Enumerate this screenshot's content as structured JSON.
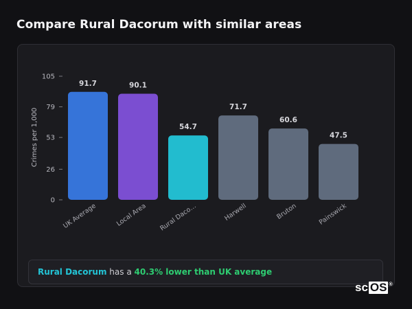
{
  "header": {
    "title": "Compare Rural Dacorum with similar areas"
  },
  "summary": {
    "area_name": "Rural Dacorum",
    "middle_text": " has a ",
    "difference_text": "40.3% lower than UK average"
  },
  "logo": {
    "text": "sc",
    "highlight": "OS",
    "mark": "®"
  },
  "colors": {
    "uk_average": "#3674d9",
    "local_area": "#7b4ed1",
    "selected": "#22bccf",
    "comparison": "#5f6b7d"
  },
  "chart_data": {
    "type": "bar",
    "title": "",
    "ylabel": "Crimes per 1,000",
    "xlabel": "",
    "ylim": [
      0,
      105
    ],
    "yticks": [
      0,
      26,
      53,
      79,
      105
    ],
    "categories": [
      "UK Average",
      "Local Area",
      "Rural Dacorum",
      "Harwell",
      "Bruton",
      "Painswick"
    ],
    "category_labels": [
      "UK Average",
      "Local Area",
      "Rural Daco…",
      "Harwell",
      "Bruton",
      "Painswick"
    ],
    "values": [
      91.7,
      90.1,
      54.7,
      71.7,
      60.6,
      47.5
    ],
    "value_labels": [
      "91.7",
      "90.1",
      "54.7",
      "71.7",
      "60.6",
      "47.5"
    ],
    "bar_colors": [
      "#3674d9",
      "#7b4ed1",
      "#22bccf",
      "#5f6b7d",
      "#5f6b7d",
      "#5f6b7d"
    ],
    "grid": false,
    "legend": "none"
  }
}
